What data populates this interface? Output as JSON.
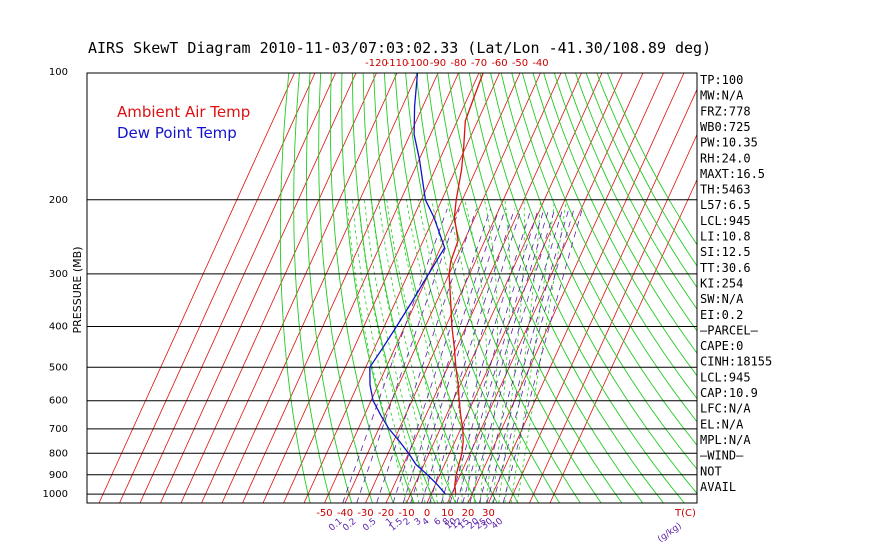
{
  "chart_data": {
    "type": "line",
    "title": "AIRS SkewT Diagram 2010-11-03/07:03:02.33 (Lat/Lon -41.30/108.89 deg)",
    "ylabel": "PRESSURE (MB)",
    "xlabel": "T(C)",
    "mixing_ratio_label": "(g/kg)",
    "pressure_ticks": [
      "100",
      "200",
      "300",
      "400",
      "500",
      "600",
      "700",
      "800",
      "900",
      "1000"
    ],
    "pressure_values": [
      100,
      200,
      300,
      400,
      500,
      600,
      700,
      800,
      900,
      1000
    ],
    "top_temp_ticks": [
      "-120",
      "-110",
      "-100",
      "-90",
      "-80",
      "-70",
      "-60",
      "-50",
      "-40"
    ],
    "top_temp_values": [
      -120,
      -110,
      -100,
      -90,
      -80,
      -70,
      -60,
      -50,
      -40
    ],
    "bottom_temp_ticks": [
      "-50",
      "-40",
      "-30",
      "-20",
      "-10",
      "0",
      "10",
      "20",
      "30"
    ],
    "bottom_temp_values": [
      -50,
      -40,
      -30,
      -20,
      -10,
      0,
      10,
      20,
      30
    ],
    "mixing_ratio_ticks": [
      "0.1",
      "0.2",
      "0.5",
      "1",
      "1.5",
      "2",
      "3",
      "4",
      "6",
      "8",
      "10",
      "12",
      "15",
      "20",
      "25",
      "30",
      "40"
    ],
    "mixing_ratio_values": [
      0.1,
      0.2,
      0.5,
      1,
      1.5,
      2,
      3,
      4,
      6,
      8,
      10,
      12,
      15,
      20,
      25,
      30,
      40
    ],
    "series": [
      {
        "name": "Ambient Air Temp",
        "color": "#dd1111",
        "points": [
          [
            1000,
            12
          ],
          [
            950,
            9.5
          ],
          [
            900,
            8
          ],
          [
            850,
            7
          ],
          [
            800,
            6
          ],
          [
            750,
            4
          ],
          [
            700,
            1
          ],
          [
            650,
            -3
          ],
          [
            600,
            -7
          ],
          [
            550,
            -11
          ],
          [
            500,
            -16
          ],
          [
            450,
            -21
          ],
          [
            400,
            -27
          ],
          [
            350,
            -33
          ],
          [
            300,
            -40
          ],
          [
            280,
            -42
          ],
          [
            250,
            -43
          ],
          [
            220,
            -50
          ],
          [
            200,
            -53
          ],
          [
            170,
            -57
          ],
          [
            150,
            -61
          ],
          [
            130,
            -66
          ],
          [
            115,
            -67
          ],
          [
            100,
            -68
          ]
        ]
      },
      {
        "name": "Dew Point Temp",
        "color": "#1111cc",
        "points": [
          [
            1000,
            7
          ],
          [
            950,
            1
          ],
          [
            900,
            -6
          ],
          [
            850,
            -14
          ],
          [
            800,
            -20
          ],
          [
            750,
            -27
          ],
          [
            700,
            -35
          ],
          [
            650,
            -42
          ],
          [
            600,
            -49
          ],
          [
            550,
            -54
          ],
          [
            500,
            -58
          ],
          [
            450,
            -56
          ],
          [
            400,
            -54
          ],
          [
            350,
            -52
          ],
          [
            300,
            -50
          ],
          [
            260,
            -48
          ],
          [
            220,
            -60
          ],
          [
            200,
            -68
          ],
          [
            160,
            -80
          ],
          [
            140,
            -88
          ],
          [
            120,
            -94
          ],
          [
            100,
            -100
          ]
        ]
      }
    ],
    "legend": [
      "Ambient Air Temp",
      "Dew Point Temp"
    ],
    "legend_placement": "top-left",
    "stats": [
      "TP:100",
      "MW:N/A",
      "FRZ:778",
      "WB0:725",
      "PW:10.35",
      "RH:24.0",
      "MAXT:16.5",
      "TH:5463",
      "L57:6.5",
      "LCL:945",
      "LI:10.8",
      "SI:12.5",
      "TT:30.6",
      "KI:254",
      "SW:N/A",
      "EI:0.2",
      "–PARCEL–",
      "CAPE:0",
      "CINH:18155",
      "LCL:945",
      "CAP:10.9",
      "LFC:N/A",
      "EL:N/A",
      "MPL:N/A",
      "–WIND–",
      "NOT",
      "AVAIL"
    ],
    "colors": {
      "isotherm": "#dd1111",
      "dry_adiabat": "#22cc22",
      "moist_adiabat": "#22cc22",
      "mixing_ratio": "#5b1fa8",
      "isobar": "#000000",
      "temperature": "#dd1111",
      "dewpoint": "#1111cc"
    }
  }
}
